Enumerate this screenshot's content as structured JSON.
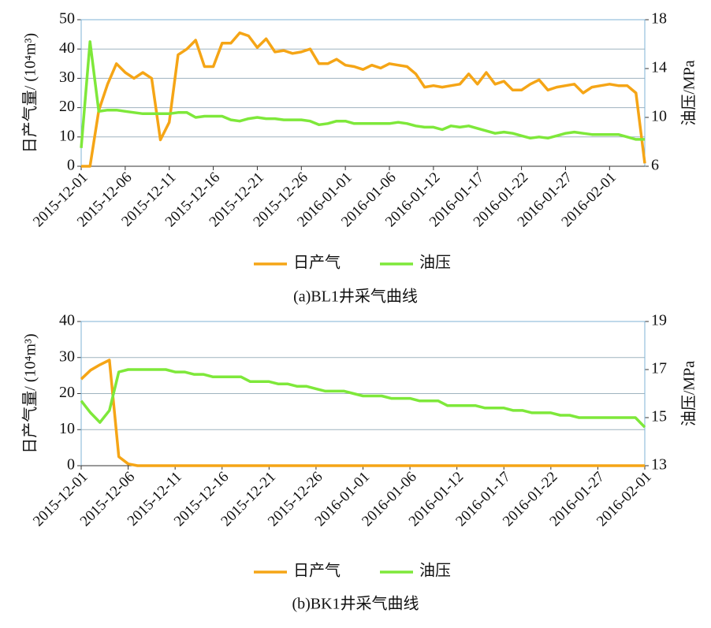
{
  "chart_data": [
    {
      "type": "line",
      "caption": "(a)BL1井采气曲线",
      "ylabel": "日产气量/ (10⁴m³)",
      "y2label": "油压/MPa",
      "categories": [
        "2015-12-01",
        null,
        null,
        null,
        null,
        "2015-12-06",
        null,
        null,
        null,
        null,
        "2015-12-11",
        null,
        null,
        null,
        null,
        "2015-12-16",
        null,
        null,
        null,
        null,
        "2015-12-21",
        null,
        null,
        null,
        null,
        "2015-12-26",
        null,
        null,
        null,
        null,
        "2016-01-01",
        null,
        null,
        null,
        null,
        "2016-01-06",
        null,
        null,
        null,
        null,
        "2016-01-12",
        null,
        null,
        null,
        null,
        "2016-01-17",
        null,
        null,
        null,
        null,
        "2016-01-22",
        null,
        null,
        null,
        null,
        "2016-01-27",
        null,
        null,
        null,
        null,
        "2016-02-01",
        null,
        null,
        null,
        null
      ],
      "ylim": [
        0,
        50
      ],
      "yticks": [
        0,
        10,
        20,
        30,
        40,
        50
      ],
      "y2lim": [
        6,
        18
      ],
      "y2ticks": [
        6,
        10,
        14,
        18
      ],
      "grid": true,
      "series": [
        {
          "name": "日产气",
          "color": "#f5a516",
          "values": [
            0,
            0,
            19,
            28,
            35,
            32,
            30,
            32,
            30,
            9,
            15,
            38,
            40,
            43,
            34,
            34,
            42,
            42,
            45.5,
            44.5,
            40.5,
            43.5,
            39,
            39.5,
            38.5,
            39,
            40,
            35,
            35,
            36.5,
            34.5,
            34,
            33,
            34.5,
            33.5,
            35,
            34.5,
            34,
            31.5,
            27,
            27.5,
            27,
            27.5,
            28,
            31.5,
            28,
            32,
            28,
            29,
            26,
            26,
            28,
            29.5,
            26,
            27,
            27.5,
            28,
            25,
            27,
            27.5,
            28,
            27.5,
            27.5,
            25,
            1
          ]
        },
        {
          "name": "油压",
          "color": "#7ee83a",
          "axis": "y2",
          "values": [
            7.5,
            16.2,
            10.5,
            10.6,
            10.6,
            10.5,
            10.4,
            10.3,
            10.3,
            10.3,
            10.3,
            10.4,
            10.4,
            10.0,
            10.1,
            10.1,
            10.1,
            9.8,
            9.7,
            9.9,
            10.0,
            9.9,
            9.9,
            9.8,
            9.8,
            9.8,
            9.7,
            9.4,
            9.5,
            9.7,
            9.7,
            9.5,
            9.5,
            9.5,
            9.5,
            9.5,
            9.6,
            9.5,
            9.3,
            9.2,
            9.2,
            9.0,
            9.3,
            9.2,
            9.3,
            9.1,
            8.9,
            8.7,
            8.8,
            8.7,
            8.5,
            8.3,
            8.4,
            8.3,
            8.5,
            8.7,
            8.8,
            8.7,
            8.6,
            8.6,
            8.6,
            8.6,
            8.4,
            8.2,
            8.2
          ]
        }
      ]
    },
    {
      "type": "line",
      "caption": "(b)BK1井采气曲线",
      "ylabel": "日产气量/ (10⁴m³)",
      "y2label": "油压/MPa",
      "categories": [
        "2015-12-01",
        null,
        null,
        null,
        null,
        "2015-12-06",
        null,
        null,
        null,
        null,
        "2015-12-11",
        null,
        null,
        null,
        null,
        "2015-12-16",
        null,
        null,
        null,
        null,
        "2015-12-21",
        null,
        null,
        null,
        null,
        "2015-12-26",
        null,
        null,
        null,
        null,
        "2016-01-01",
        null,
        null,
        null,
        null,
        "2016-01-06",
        null,
        null,
        null,
        null,
        "2016-01-12",
        null,
        null,
        null,
        null,
        "2016-01-17",
        null,
        null,
        null,
        null,
        "2016-01-22",
        null,
        null,
        null,
        null,
        "2016-01-27",
        null,
        null,
        null,
        null,
        "2016-02-01"
      ],
      "ylim": [
        0,
        40
      ],
      "yticks": [
        0,
        10,
        20,
        30,
        40
      ],
      "y2lim": [
        13,
        19
      ],
      "y2ticks": [
        13,
        15,
        17,
        19
      ],
      "grid": true,
      "series": [
        {
          "name": "日产气",
          "color": "#f5a516",
          "values": [
            24,
            26.5,
            28,
            29.3,
            2.5,
            0.5,
            0,
            0,
            0,
            0,
            0,
            0,
            0,
            0,
            0,
            0,
            0,
            0,
            0,
            0,
            0,
            0,
            0,
            0,
            0,
            0,
            0,
            0,
            0,
            0,
            0,
            0,
            0,
            0,
            0,
            0,
            0,
            0,
            0,
            0,
            0,
            0,
            0,
            0,
            0,
            0,
            0,
            0,
            0,
            0,
            0,
            0,
            0,
            0,
            0,
            0,
            0,
            0,
            0,
            0,
            0
          ]
        },
        {
          "name": "油压",
          "color": "#7ee83a",
          "axis": "y2",
          "values": [
            15.7,
            15.2,
            14.8,
            15.3,
            16.9,
            17.0,
            17.0,
            17.0,
            17.0,
            17.0,
            16.9,
            16.9,
            16.8,
            16.8,
            16.7,
            16.7,
            16.7,
            16.7,
            16.5,
            16.5,
            16.5,
            16.4,
            16.4,
            16.3,
            16.3,
            16.2,
            16.1,
            16.1,
            16.1,
            16.0,
            15.9,
            15.9,
            15.9,
            15.8,
            15.8,
            15.8,
            15.7,
            15.7,
            15.7,
            15.5,
            15.5,
            15.5,
            15.5,
            15.4,
            15.4,
            15.4,
            15.3,
            15.3,
            15.2,
            15.2,
            15.2,
            15.1,
            15.1,
            15.0,
            15.0,
            15.0,
            15.0,
            15.0,
            15.0,
            15.0,
            14.6
          ]
        }
      ]
    }
  ]
}
